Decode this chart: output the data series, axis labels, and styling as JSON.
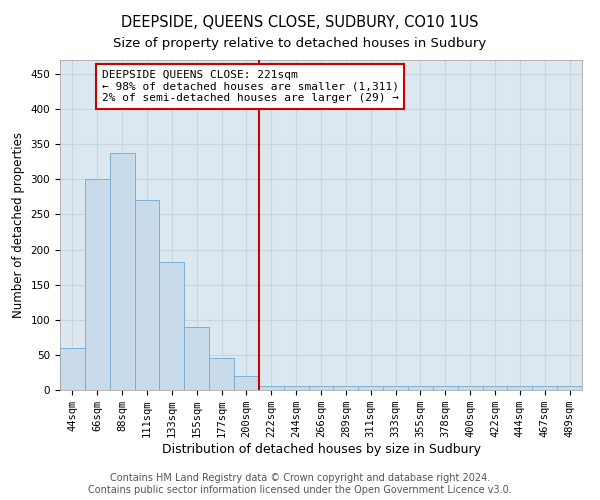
{
  "title": "DEEPSIDE, QUEENS CLOSE, SUDBURY, CO10 1US",
  "subtitle": "Size of property relative to detached houses in Sudbury",
  "xlabel": "Distribution of detached houses by size in Sudbury",
  "ylabel": "Number of detached properties",
  "categories": [
    "44sqm",
    "66sqm",
    "88sqm",
    "111sqm",
    "133sqm",
    "155sqm",
    "177sqm",
    "200sqm",
    "222sqm",
    "244sqm",
    "266sqm",
    "289sqm",
    "311sqm",
    "333sqm",
    "355sqm",
    "378sqm",
    "400sqm",
    "422sqm",
    "444sqm",
    "467sqm",
    "489sqm"
  ],
  "values": [
    60,
    300,
    338,
    270,
    183,
    90,
    45,
    20,
    5,
    5,
    5,
    5,
    5,
    5,
    5,
    5,
    5,
    5,
    5,
    5,
    5
  ],
  "bar_color": "#c9daea",
  "bar_edge_color": "#7bafd4",
  "vline_x_index": 8,
  "vline_color": "#cc0000",
  "annotation_text": "DEEPSIDE QUEENS CLOSE: 221sqm\n← 98% of detached houses are smaller (1,311)\n2% of semi-detached houses are larger (29) →",
  "annotation_box_facecolor": "#ffffff",
  "annotation_box_edgecolor": "#cc0000",
  "ylim": [
    0,
    470
  ],
  "yticks": [
    0,
    50,
    100,
    150,
    200,
    250,
    300,
    350,
    400,
    450
  ],
  "grid_color": "#c8d4e0",
  "bg_color": "#dce8f0",
  "footer_text": "Contains HM Land Registry data © Crown copyright and database right 2024.\nContains public sector information licensed under the Open Government Licence v3.0.",
  "title_fontsize": 10.5,
  "subtitle_fontsize": 9.5,
  "xlabel_fontsize": 9,
  "ylabel_fontsize": 8.5,
  "tick_fontsize": 7.5,
  "annotation_fontsize": 8,
  "footer_fontsize": 7
}
